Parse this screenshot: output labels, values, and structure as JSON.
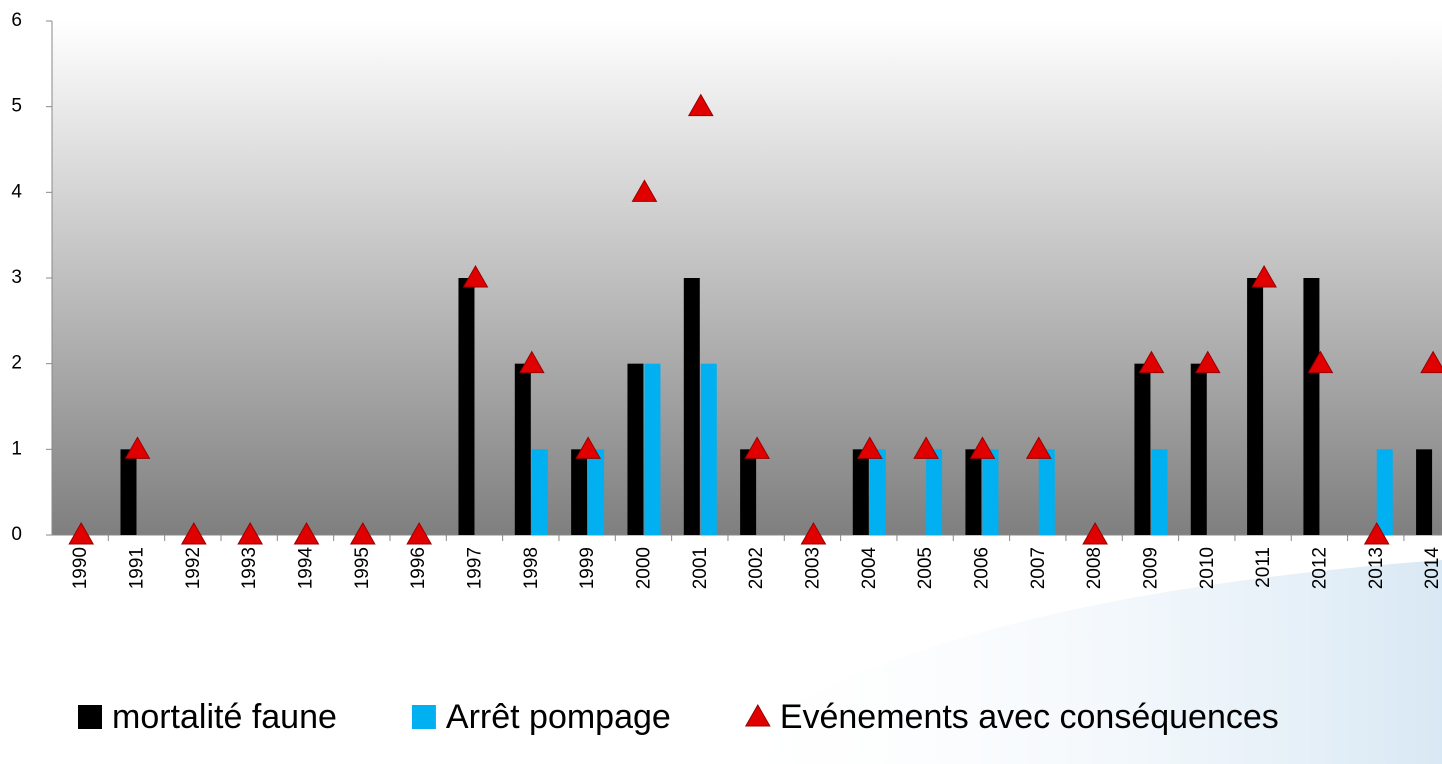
{
  "chart_data": {
    "type": "bar",
    "categories": [
      "1990",
      "1991",
      "1992",
      "1993",
      "1994",
      "1995",
      "1996",
      "1997",
      "1998",
      "1999",
      "2000",
      "2001",
      "2002",
      "2003",
      "2004",
      "2005",
      "2006",
      "2007",
      "2008",
      "2009",
      "2010",
      "2011",
      "2012",
      "2013",
      "2014"
    ],
    "series": [
      {
        "name": "mortalité faune",
        "color": "#000000",
        "type": "bar",
        "values": [
          0,
          1,
          0,
          0,
          0,
          0,
          0,
          3,
          2,
          1,
          2,
          3,
          1,
          0,
          1,
          0,
          1,
          0,
          0,
          2,
          2,
          3,
          3,
          0,
          1
        ]
      },
      {
        "name": "Arrêt pompage",
        "color": "#00b0f0",
        "type": "bar",
        "values": [
          0,
          0,
          0,
          0,
          0,
          0,
          0,
          0,
          1,
          1,
          2,
          2,
          0,
          0,
          1,
          1,
          1,
          1,
          0,
          1,
          0,
          0,
          0,
          1,
          0
        ]
      },
      {
        "name": "Evénements avec conséquences",
        "color": "#e00000",
        "type": "scatter",
        "values": [
          0,
          1,
          0,
          0,
          0,
          0,
          0,
          3,
          2,
          1,
          4,
          5,
          1,
          0,
          1,
          1,
          1,
          1,
          0,
          2,
          2,
          3,
          2,
          0,
          2
        ]
      }
    ],
    "ylim": [
      0,
      6
    ],
    "yticks": [
      0,
      1,
      2,
      3,
      4,
      5,
      6
    ],
    "legend": "bottom"
  }
}
